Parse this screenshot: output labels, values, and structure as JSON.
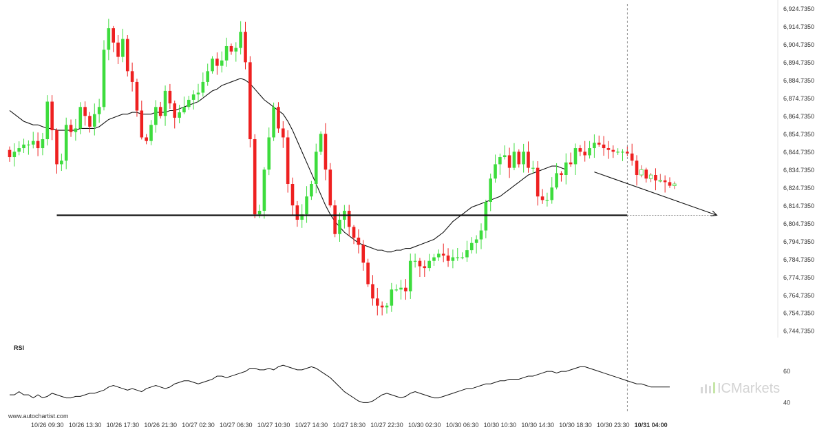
{
  "chart_data": {
    "type": "candlestick",
    "source": "www.autochartist.com",
    "watermark": "ICMarkets",
    "y_axis": {
      "ticks": [
        6924.735,
        6914.735,
        6904.735,
        6894.735,
        6884.735,
        6874.735,
        6864.735,
        6854.735,
        6844.735,
        6834.735,
        6824.735,
        6814.735,
        6804.735,
        6794.735,
        6784.735,
        6774.735,
        6764.735,
        6754.735,
        6744.735
      ],
      "tick_labels": [
        "6,924.7350",
        "6,914.7350",
        "6,904.7350",
        "6,894.7350",
        "6,884.7350",
        "6,874.7350",
        "6,864.7350",
        "6,854.7350",
        "6,844.7350",
        "6,834.7350",
        "6,824.7350",
        "6,814.7350",
        "6,804.7350",
        "6,794.7350",
        "6,784.7350",
        "6,774.7350",
        "6,764.7350",
        "6,754.7350",
        "6,744.7350"
      ],
      "range": [
        6742.7,
        6926.7
      ]
    },
    "x_axis": {
      "tick_labels": [
        "10/26 09:30",
        "10/26 13:30",
        "10/26 17:30",
        "10/26 21:30",
        "10/27 02:30",
        "10/27 06:30",
        "10/27 10:30",
        "10/27 14:30",
        "10/27 18:30",
        "10/27 22:30",
        "10/30 02:30",
        "10/30 06:30",
        "10/30 10:30",
        "10/30 14:30",
        "10/30 18:30",
        "10/30 23:30",
        "10/31 04:00"
      ],
      "tick_index": [
        8,
        16,
        24,
        32,
        40,
        48,
        56,
        64,
        72,
        80,
        88,
        96,
        104,
        112,
        120,
        128,
        136
      ],
      "highlight_label": "10/31 04:00"
    },
    "close": [
      6842,
      6845,
      6847,
      6849,
      6849,
      6851,
      6847,
      6852,
      6873,
      6857,
      6838,
      6840,
      6860,
      6856,
      6858,
      6870,
      6865,
      6859,
      6866,
      6870,
      6902,
      6914,
      6906,
      6898,
      6908,
      6890,
      6884,
      6868,
      6853,
      6851,
      6860,
      6870,
      6865,
      6879,
      6872,
      6864,
      6867,
      6870,
      6874,
      6877,
      6878,
      6884,
      6890,
      6897,
      6893,
      6896,
      6904,
      6901,
      6903,
      6912,
      6895,
      6852,
      6810,
      6812,
      6835,
      6853,
      6870,
      6858,
      6853,
      6827,
      6815,
      6807,
      6810,
      6820,
      6827,
      6845,
      6855,
      6835,
      6815,
      6799,
      6807,
      6812,
      6803,
      6797,
      6793,
      6783,
      6771,
      6763,
      6759,
      6758,
      6759,
      6768,
      6768,
      6769,
      6767,
      6784,
      6784,
      6781,
      6780,
      6784,
      6786,
      6788,
      6787,
      6784,
      6786,
      6786,
      6786,
      6790,
      6794,
      6796,
      6801,
      6817,
      6830,
      6838,
      6842,
      6843,
      6836,
      6845,
      6838,
      6845,
      6836,
      6836,
      6820,
      6818,
      6818,
      6825,
      6833,
      6832,
      6839,
      6838,
      6847,
      6845,
      6843,
      6847,
      6850,
      6849,
      6847,
      6846,
      6845,
      6845,
      6845,
      6844,
      6840,
      6832,
      6835,
      6830,
      6832,
      6829,
      6829,
      6828,
      6826,
      6827
    ],
    "sma_line": [
      6868,
      6866,
      6864,
      6862,
      6861,
      6860,
      6860,
      6859,
      6858,
      6858,
      6857,
      6857,
      6857,
      6857,
      6857,
      6858,
      6858,
      6858,
      6858,
      6859,
      6861,
      6863,
      6864,
      6865,
      6866,
      6866,
      6867,
      6867,
      6866,
      6866,
      6866,
      6867,
      6867,
      6867,
      6868,
      6868,
      6869,
      6870,
      6871,
      6872,
      6873,
      6875,
      6877,
      6879,
      6880,
      6882,
      6883,
      6884,
      6885,
      6886,
      6885,
      6883,
      6880,
      6877,
      6874,
      6872,
      6870,
      6868,
      6866,
      6862,
      6857,
      6851,
      6845,
      6839,
      6833,
      6827,
      6821,
      6815,
      6810,
      6806,
      6803,
      6800,
      6798,
      6796,
      6794,
      6793,
      6792,
      6791,
      6790,
      6790,
      6789,
      6789,
      6790,
      6790,
      6791,
      6791,
      6792,
      6793,
      6794,
      6795,
      6796,
      6798,
      6800,
      6803,
      6806,
      6808,
      6810,
      6812,
      6814,
      6815,
      6816,
      6817,
      6818,
      6819,
      6820,
      6822,
      6824,
      6826,
      6828,
      6830,
      6832,
      6833,
      6834,
      6835,
      6836,
      6837,
      6837,
      6836,
      6835
    ],
    "trend_arrow": {
      "from_index": 124,
      "to_index": 150,
      "from_price": 6833.7,
      "to_price": 6809.5
    },
    "support_level": {
      "price": 6809.5,
      "from_index": 10,
      "to_index": 131,
      "dashed_to_index": 150
    },
    "current_time_index": 131,
    "rsi": {
      "title": "RSI",
      "ticks": [
        60,
        40
      ],
      "tick_labels": [
        "60",
        "40"
      ],
      "range": [
        34,
        72
      ],
      "values": [
        45,
        45,
        47,
        45,
        45,
        43,
        45,
        43,
        44,
        46,
        45,
        44,
        43,
        43,
        44,
        44,
        45,
        46,
        46,
        47,
        48,
        50,
        51,
        50,
        49,
        48,
        49,
        48,
        47,
        49,
        50,
        51,
        50,
        49,
        50,
        52,
        53,
        54,
        54,
        53,
        52,
        53,
        54,
        55,
        57,
        57,
        56,
        57,
        58,
        59,
        60,
        62,
        62,
        61,
        61,
        62,
        61,
        63,
        64,
        63,
        62,
        61,
        61,
        62,
        63,
        62,
        60,
        58,
        56,
        53,
        50,
        47,
        45,
        43,
        41,
        40,
        40,
        41,
        43,
        45,
        46,
        45,
        44,
        43,
        44,
        46,
        47,
        46,
        45,
        44,
        43,
        43,
        44,
        45,
        46,
        47,
        48,
        49,
        49,
        50,
        51,
        52,
        52,
        53,
        54,
        54,
        55,
        55,
        55,
        56,
        57,
        57,
        58,
        59,
        60,
        60,
        59,
        60,
        60,
        61,
        62,
        63,
        63,
        62,
        61,
        60,
        59,
        58,
        57,
        56,
        55,
        54,
        53,
        52,
        52,
        51,
        50,
        50,
        50,
        50,
        50
      ]
    }
  }
}
